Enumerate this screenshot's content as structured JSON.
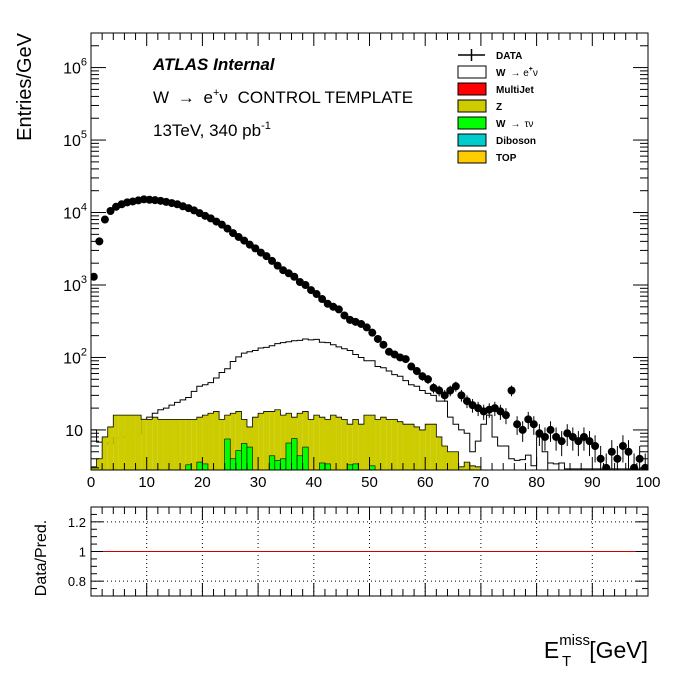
{
  "chart_data": {
    "type": "histogram",
    "annotations": {
      "experiment": "ATLAS Internal",
      "template_prefix": "W",
      "template_arrow": "→",
      "template_lepton": "e",
      "template_lepton_sup": "+",
      "template_nu": "ν",
      "template_suffix": "CONTROL TEMPLATE",
      "energy": "13TeV, 340 pb",
      "energy_sup": "-1"
    },
    "legend": [
      {
        "name": "DATA",
        "style": "marker",
        "color": "#000000"
      },
      {
        "name": "W",
        "sup": "+",
        "arrow": "→ e",
        "tail": "ν",
        "style": "fill",
        "color": "#ffffff"
      },
      {
        "name": "MultiJet",
        "style": "fill",
        "color": "#ff0000"
      },
      {
        "name": "Z",
        "style": "fill",
        "color": "#cccc00"
      },
      {
        "name": "W",
        "arrow": "→",
        "tail": "τν",
        "style": "fill",
        "color": "#00ff00"
      },
      {
        "name": "Diboson",
        "style": "fill",
        "color": "#00cccc"
      },
      {
        "name": "TOP",
        "style": "fill",
        "color": "#ffcc00"
      }
    ],
    "main": {
      "ylabel": "Entries/GeV",
      "yscale": "log",
      "ylim": [
        2.8,
        3000000
      ],
      "xlim": [
        0,
        100
      ],
      "bin_width": 1,
      "x_ticks": [
        "0",
        "10",
        "20",
        "30",
        "40",
        "50",
        "60",
        "70",
        "80",
        "90",
        "100"
      ],
      "y_ticks": [
        {
          "value": 10,
          "base": "10",
          "exp": ""
        },
        {
          "value": 100,
          "base": "10",
          "exp": "2"
        },
        {
          "value": 1000,
          "base": "10",
          "exp": "3"
        },
        {
          "value": 10000,
          "base": "10",
          "exp": "4"
        },
        {
          "value": 100000,
          "base": "10",
          "exp": "5"
        },
        {
          "value": 1000000,
          "base": "10",
          "exp": "6"
        }
      ],
      "data": [
        1300,
        4000,
        8000,
        10500,
        12000,
        13000,
        13800,
        14200,
        14700,
        15200,
        15000,
        14800,
        14500,
        14000,
        13500,
        13000,
        12200,
        11500,
        10700,
        9800,
        9000,
        8300,
        7500,
        6800,
        6000,
        5200,
        4600,
        4100,
        3600,
        3200,
        2800,
        2500,
        2150,
        1850,
        1600,
        1450,
        1300,
        1100,
        1000,
        850,
        750,
        640,
        550,
        500,
        460,
        380,
        330,
        310,
        290,
        260,
        220,
        180,
        150,
        120,
        110,
        100,
        95,
        75,
        65,
        55,
        50,
        38,
        35,
        30,
        35,
        40,
        30,
        25,
        22,
        20,
        18,
        19,
        20,
        18,
        16,
        35,
        12,
        10,
        14,
        12,
        9,
        8,
        10,
        8,
        7,
        9,
        8,
        7,
        8,
        7,
        6,
        4,
        3,
        5,
        4,
        6,
        5,
        3,
        4,
        3
      ],
      "w_enu": [
        10,
        6.8,
        6.8,
        6.4,
        7.8,
        7.8,
        8.2,
        8.8,
        8.8,
        14,
        15,
        17,
        19,
        20,
        22,
        24,
        26,
        28,
        34,
        40,
        42,
        45,
        52,
        62,
        70,
        88,
        102,
        115,
        120,
        125,
        135,
        138,
        145,
        155,
        160,
        165,
        170,
        172,
        180,
        175,
        178,
        162,
        160,
        150,
        140,
        132,
        125,
        110,
        100,
        90,
        90,
        75,
        72,
        65,
        58,
        55,
        48,
        42,
        40,
        35,
        32,
        30,
        25,
        25,
        15,
        12,
        10,
        9,
        5,
        7,
        12,
        16,
        8,
        6,
        6,
        4,
        3.8,
        3.9,
        4.5,
        3.2,
        8,
        5,
        3.5,
        3.4,
        3.5,
        2.9,
        2.9,
        2.9,
        2.9,
        2.9,
        2.9,
        2.9,
        2.9,
        2.9,
        2.9,
        2.9,
        2.9,
        2.9,
        2.9,
        2.9
      ],
      "z": [
        3.1,
        4,
        8,
        11,
        16,
        16,
        16,
        16,
        16,
        14,
        14,
        15,
        14,
        14,
        14,
        14,
        14,
        14,
        14,
        15,
        16,
        17,
        18,
        14,
        16,
        17,
        18,
        14,
        11,
        15,
        17,
        18,
        18,
        19,
        16,
        17,
        15,
        17,
        18,
        14,
        16,
        15,
        14,
        16,
        15,
        14,
        12,
        14,
        12,
        16,
        16,
        14,
        15,
        14,
        14,
        13,
        12,
        12,
        11,
        10,
        12,
        12,
        8,
        6,
        5,
        5,
        3.1,
        3.6,
        3.2,
        3.1
      ],
      "w_taunu": [
        0,
        0,
        0,
        0,
        0,
        0,
        0,
        0,
        0,
        0,
        0,
        0,
        0,
        0,
        0,
        0,
        0,
        0,
        0,
        3.4,
        3.1,
        3.2,
        3.6,
        3.4,
        0,
        3.6,
        3.4,
        0,
        0,
        0,
        0,
        3.2,
        3.6,
        0,
        0,
        0,
        0,
        0,
        0,
        0,
        0,
        0,
        0,
        0,
        3.2,
        3.1,
        0,
        3.5,
        3.4,
        0,
        3.1,
        3.2,
        0,
        3.2,
        3.1,
        0,
        0,
        0,
        0,
        0,
        0,
        0,
        0,
        0,
        0,
        0,
        0,
        0,
        0,
        0
      ],
      "w_taunu_bins": [
        {
          "x": 17,
          "v": 3.3
        },
        {
          "x": 19,
          "v": 3.6
        },
        {
          "x": 20,
          "v": 3.4
        },
        {
          "x": 24,
          "v": 7.5
        },
        {
          "x": 25,
          "v": 4.0
        },
        {
          "x": 26,
          "v": 5.2
        },
        {
          "x": 27,
          "v": 6.5
        },
        {
          "x": 28,
          "v": 5.8
        },
        {
          "x": 32,
          "v": 4.4
        },
        {
          "x": 33,
          "v": 3.8
        },
        {
          "x": 34,
          "v": 4.0
        },
        {
          "x": 35,
          "v": 6.6
        },
        {
          "x": 36,
          "v": 7.6
        },
        {
          "x": 37,
          "v": 4.4
        },
        {
          "x": 38,
          "v": 5.8
        },
        {
          "x": 41,
          "v": 3.5
        },
        {
          "x": 42,
          "v": 3.4
        },
        {
          "x": 46,
          "v": 3.3
        },
        {
          "x": 47,
          "v": 3.4
        },
        {
          "x": 50,
          "v": 3.2
        }
      ]
    },
    "ratio": {
      "ylabel": "Data/Pred.",
      "ylim": [
        0.7,
        1.3
      ],
      "y_ticks": [
        "0.8",
        "1",
        "1.2"
      ],
      "y_tick_values": [
        0.8,
        1,
        1.2
      ],
      "reference": 1,
      "reference_color": "#cc0000"
    },
    "xlabel": {
      "base": "E",
      "sup": "miss",
      "sub": "T",
      "unit": "[GeV]"
    }
  }
}
